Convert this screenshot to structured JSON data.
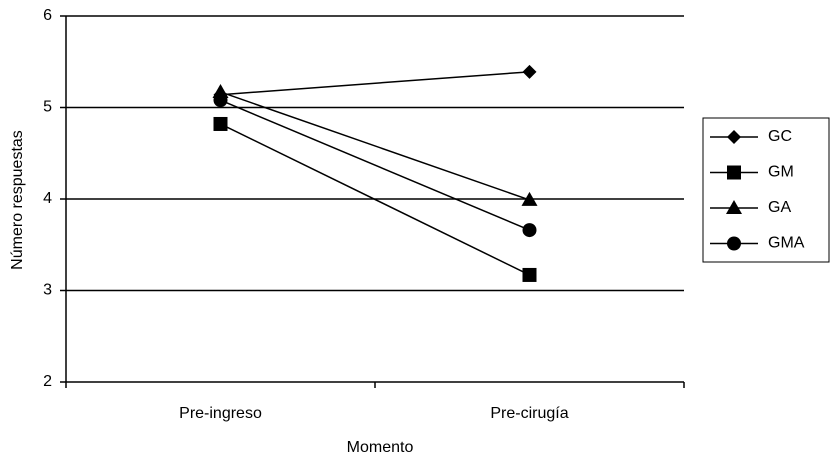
{
  "chart_data": {
    "type": "line",
    "categories": [
      "Pre-ingreso",
      "Pre-cirugía"
    ],
    "series": [
      {
        "name": "GC",
        "color": "#000000",
        "marker": "diamond",
        "values": [
          5.14,
          5.39
        ]
      },
      {
        "name": "GM",
        "color": "#000000",
        "marker": "square",
        "values": [
          4.82,
          3.17
        ]
      },
      {
        "name": "GA",
        "color": "#000000",
        "marker": "triangle",
        "values": [
          5.17,
          3.99
        ]
      },
      {
        "name": "GMA",
        "color": "#000000",
        "marker": "circle",
        "values": [
          5.08,
          3.66
        ]
      }
    ],
    "ylim": [
      2,
      6
    ],
    "yticks": [
      2,
      3,
      4,
      5,
      6
    ],
    "grid": true,
    "xlabel": "Momento",
    "ylabel": "Número respuestas",
    "legend": "right"
  }
}
